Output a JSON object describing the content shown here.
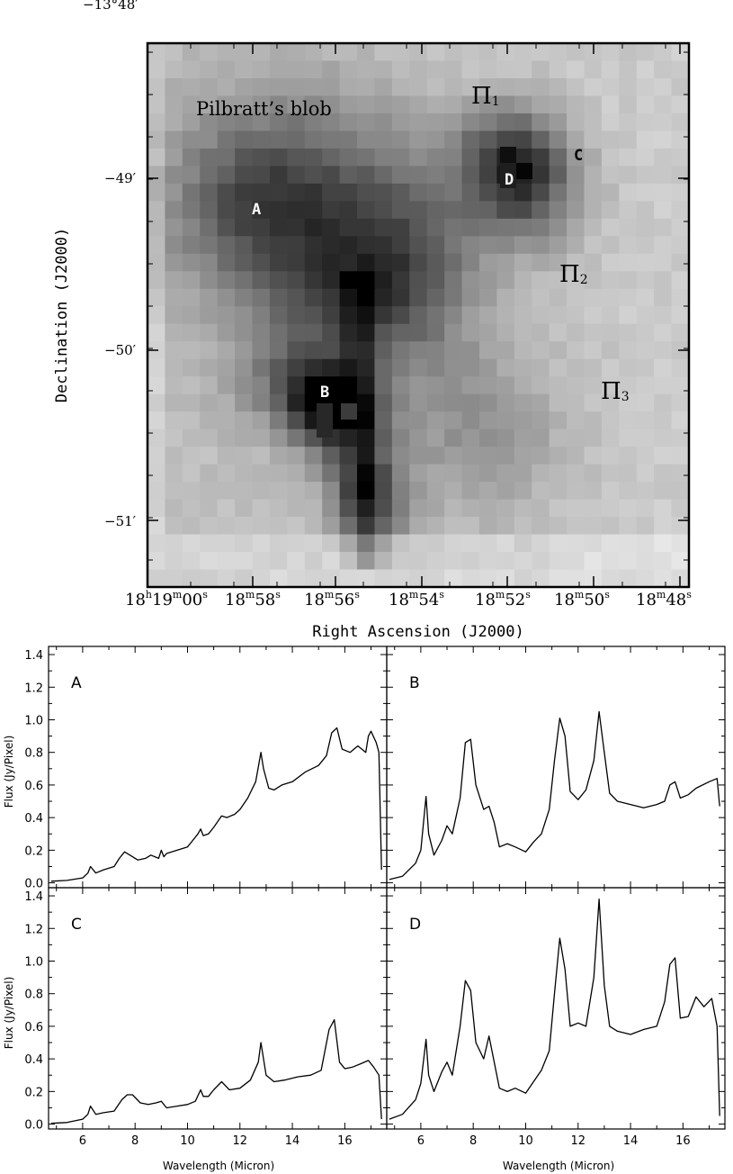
{
  "chart_data": [
    {
      "type": "heatmap",
      "title": "",
      "xlabel": "Right Ascension (J2000)",
      "ylabel": "Declination (J2000)",
      "colormap": "grayscale (dark = bright emission)",
      "x_tick_labels": [
        {
          "h": "18",
          "hu": "h",
          "m": "19",
          "mu": "m",
          "s": "00",
          "su": "s"
        },
        {
          "m": "18",
          "mu": "m",
          "s": "58",
          "su": "s"
        },
        {
          "m": "18",
          "mu": "m",
          "s": "56",
          "su": "s"
        },
        {
          "m": "18",
          "mu": "m",
          "s": "54",
          "su": "s"
        },
        {
          "m": "18",
          "mu": "m",
          "s": "52",
          "su": "s"
        },
        {
          "m": "18",
          "mu": "m",
          "s": "50",
          "su": "s"
        },
        {
          "m": "18",
          "mu": "m",
          "s": "48",
          "su": "s"
        }
      ],
      "y_tick_labels": [
        "−13°48′",
        "−49′",
        "−50′",
        "−51′"
      ],
      "annotations": [
        {
          "text": "Pilbratt’s blob",
          "kind": "label"
        },
        {
          "text": "Π",
          "sub": "1",
          "kind": "region"
        },
        {
          "text": "Π",
          "sub": "2",
          "kind": "region"
        },
        {
          "text": "Π",
          "sub": "3",
          "kind": "region"
        },
        {
          "text": "A",
          "kind": "position"
        },
        {
          "text": "B",
          "kind": "position"
        },
        {
          "text": "C",
          "kind": "position"
        },
        {
          "text": "D",
          "kind": "position"
        }
      ]
    },
    {
      "type": "line",
      "layout": "2x2 panels",
      "xlabel": "Wavelength (Micron)",
      "ylabel": "Flux (Jy/Pixel)",
      "xlim": [
        4.7,
        17.6
      ],
      "ylim": [
        -0.03,
        1.45
      ],
      "x_ticks": [
        "6",
        "8",
        "10",
        "12",
        "14",
        "16"
      ],
      "y_ticks": [
        "0.0",
        "0.2",
        "0.4",
        "0.6",
        "0.8",
        "1.0",
        "1.2",
        "1.4"
      ],
      "panels": [
        {
          "name": "A",
          "series": [
            {
              "x": [
                4.8,
                5.4,
                6.0,
                6.2,
                6.3,
                6.5,
                6.8,
                7.2,
                7.4,
                7.6,
                7.9,
                8.1,
                8.4,
                8.6,
                8.9,
                9.0,
                9.1,
                9.2,
                9.6,
                10.0,
                10.2,
                10.4,
                10.5,
                10.6,
                10.8,
                11.0,
                11.3,
                11.5,
                11.8,
                12.0,
                12.3,
                12.6,
                12.8,
                12.9,
                13.1,
                13.3,
                13.6,
                14.0,
                14.5,
                15.0,
                15.3,
                15.5,
                15.7,
                15.9,
                16.2,
                16.5,
                16.8,
                16.9,
                17.0,
                17.2,
                17.3,
                17.4
              ],
              "y": [
                0.01,
                0.015,
                0.03,
                0.06,
                0.1,
                0.06,
                0.08,
                0.1,
                0.15,
                0.19,
                0.16,
                0.14,
                0.15,
                0.17,
                0.15,
                0.2,
                0.16,
                0.18,
                0.2,
                0.22,
                0.26,
                0.3,
                0.33,
                0.29,
                0.3,
                0.34,
                0.41,
                0.4,
                0.42,
                0.45,
                0.52,
                0.62,
                0.8,
                0.7,
                0.58,
                0.57,
                0.6,
                0.62,
                0.68,
                0.72,
                0.78,
                0.92,
                0.95,
                0.82,
                0.8,
                0.84,
                0.8,
                0.9,
                0.93,
                0.86,
                0.8,
                0.08
              ]
            }
          ]
        },
        {
          "name": "B",
          "series": [
            {
              "x": [
                4.8,
                5.3,
                5.8,
                6.0,
                6.2,
                6.3,
                6.5,
                6.8,
                7.0,
                7.2,
                7.5,
                7.7,
                7.9,
                8.1,
                8.4,
                8.6,
                8.8,
                9.0,
                9.3,
                9.6,
                10.0,
                10.3,
                10.6,
                10.9,
                11.1,
                11.3,
                11.5,
                11.7,
                12.0,
                12.3,
                12.6,
                12.8,
                13.0,
                13.2,
                13.5,
                14.0,
                14.5,
                15.0,
                15.3,
                15.5,
                15.7,
                15.9,
                16.2,
                16.5,
                17.0,
                17.3,
                17.4
              ],
              "y": [
                0.02,
                0.04,
                0.12,
                0.2,
                0.53,
                0.3,
                0.17,
                0.26,
                0.35,
                0.3,
                0.52,
                0.86,
                0.88,
                0.6,
                0.45,
                0.47,
                0.37,
                0.22,
                0.24,
                0.22,
                0.19,
                0.25,
                0.3,
                0.45,
                0.75,
                1.01,
                0.9,
                0.56,
                0.51,
                0.57,
                0.75,
                1.05,
                0.8,
                0.55,
                0.5,
                0.48,
                0.46,
                0.48,
                0.5,
                0.6,
                0.62,
                0.52,
                0.54,
                0.58,
                0.62,
                0.64,
                0.47
              ]
            }
          ]
        },
        {
          "name": "C",
          "series": [
            {
              "x": [
                4.8,
                5.4,
                6.0,
                6.2,
                6.3,
                6.5,
                6.8,
                7.2,
                7.5,
                7.7,
                7.9,
                8.2,
                8.5,
                8.8,
                9.0,
                9.2,
                9.6,
                10.0,
                10.3,
                10.5,
                10.6,
                10.8,
                11.0,
                11.3,
                11.6,
                12.0,
                12.4,
                12.7,
                12.8,
                13.0,
                13.3,
                13.7,
                14.2,
                14.7,
                15.1,
                15.4,
                15.6,
                15.8,
                16.0,
                16.3,
                16.6,
                16.9,
                17.1,
                17.3,
                17.4
              ],
              "y": [
                0.005,
                0.01,
                0.03,
                0.06,
                0.11,
                0.06,
                0.07,
                0.08,
                0.15,
                0.18,
                0.18,
                0.13,
                0.12,
                0.13,
                0.14,
                0.1,
                0.11,
                0.12,
                0.14,
                0.21,
                0.17,
                0.17,
                0.21,
                0.26,
                0.21,
                0.22,
                0.27,
                0.38,
                0.5,
                0.3,
                0.26,
                0.27,
                0.29,
                0.3,
                0.33,
                0.58,
                0.64,
                0.38,
                0.34,
                0.35,
                0.37,
                0.39,
                0.35,
                0.3,
                0.03
              ]
            }
          ]
        },
        {
          "name": "D",
          "series": [
            {
              "x": [
                4.8,
                5.3,
                5.8,
                6.0,
                6.2,
                6.3,
                6.5,
                6.8,
                7.0,
                7.2,
                7.5,
                7.7,
                7.9,
                8.1,
                8.4,
                8.6,
                8.8,
                9.0,
                9.3,
                9.6,
                10.0,
                10.3,
                10.6,
                10.9,
                11.1,
                11.3,
                11.5,
                11.7,
                12.0,
                12.3,
                12.6,
                12.8,
                13.0,
                13.2,
                13.5,
                14.0,
                14.5,
                15.0,
                15.3,
                15.5,
                15.7,
                15.9,
                16.2,
                16.5,
                16.8,
                17.1,
                17.3,
                17.4
              ],
              "y": [
                0.03,
                0.06,
                0.15,
                0.25,
                0.52,
                0.3,
                0.2,
                0.32,
                0.38,
                0.3,
                0.6,
                0.88,
                0.82,
                0.5,
                0.4,
                0.54,
                0.38,
                0.22,
                0.2,
                0.22,
                0.19,
                0.26,
                0.33,
                0.45,
                0.8,
                1.14,
                0.95,
                0.6,
                0.62,
                0.6,
                0.9,
                1.38,
                0.85,
                0.6,
                0.57,
                0.55,
                0.58,
                0.6,
                0.75,
                0.98,
                1.02,
                0.65,
                0.66,
                0.78,
                0.72,
                0.77,
                0.6,
                0.05
              ]
            }
          ]
        }
      ]
    }
  ]
}
